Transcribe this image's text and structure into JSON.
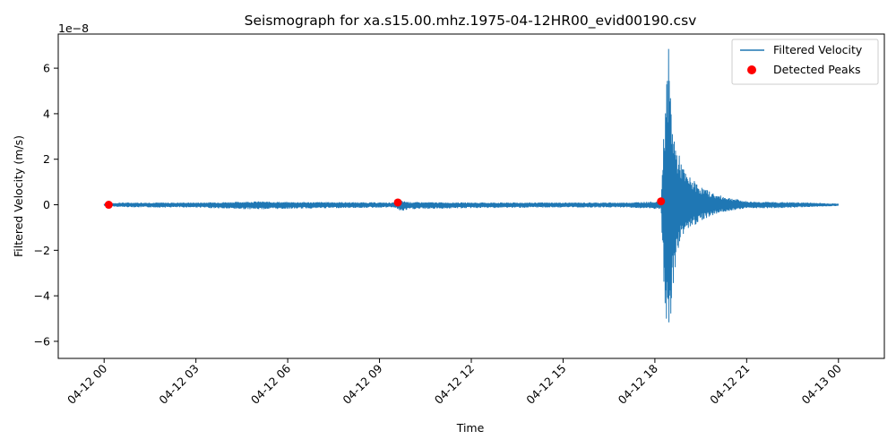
{
  "chart_data": {
    "type": "line",
    "title": "Seismograph for xa.s15.00.mhz.1975-04-12HR00_evid00190.csv",
    "xlabel": "Time",
    "ylabel": "Filtered Velocity (m/s)",
    "y_multiplier": "1e−8",
    "x_tick_labels": [
      "04-12 00",
      "04-12 03",
      "04-12 06",
      "04-12 09",
      "04-12 12",
      "04-12 15",
      "04-12 18",
      "04-12 21",
      "04-13 00"
    ],
    "y_ticks": [
      -6,
      -4,
      -2,
      0,
      2,
      4,
      6
    ],
    "y_tick_labels": [
      "−6",
      "−4",
      "−2",
      "0",
      "2",
      "4",
      "6"
    ],
    "xlim": [
      -1.5,
      25.5
    ],
    "ylim": [
      -6.75,
      7.5
    ],
    "y_scale_exponent": -8,
    "x_unit": "hours after 1975-04-12 00:00",
    "legend_position": "upper right",
    "series": [
      {
        "name": "Filtered Velocity",
        "color": "#1f77b4",
        "kind": "line",
        "envelope": [
          {
            "x": 0.0,
            "y_max": 0.05,
            "y_min": -0.05
          },
          {
            "x": 0.5,
            "y_max": 0.1,
            "y_min": -0.1
          },
          {
            "x": 1.5,
            "y_max": 0.1,
            "y_min": -0.12
          },
          {
            "x": 3.0,
            "y_max": 0.1,
            "y_min": -0.12
          },
          {
            "x": 4.0,
            "y_max": 0.12,
            "y_min": -0.18
          },
          {
            "x": 5.0,
            "y_max": 0.15,
            "y_min": -0.2
          },
          {
            "x": 6.0,
            "y_max": 0.12,
            "y_min": -0.18
          },
          {
            "x": 7.5,
            "y_max": 0.12,
            "y_min": -0.15
          },
          {
            "x": 9.5,
            "y_max": 0.1,
            "y_min": -0.12
          },
          {
            "x": 9.7,
            "y_max": 0.18,
            "y_min": -0.3
          },
          {
            "x": 10.0,
            "y_max": 0.12,
            "y_min": -0.2
          },
          {
            "x": 12.0,
            "y_max": 0.1,
            "y_min": -0.15
          },
          {
            "x": 15.0,
            "y_max": 0.1,
            "y_min": -0.12
          },
          {
            "x": 17.0,
            "y_max": 0.1,
            "y_min": -0.12
          },
          {
            "x": 18.2,
            "y_max": 0.15,
            "y_min": -0.2
          },
          {
            "x": 18.25,
            "y_max": 2.0,
            "y_min": -2.0
          },
          {
            "x": 18.35,
            "y_max": 5.0,
            "y_min": -5.8
          },
          {
            "x": 18.45,
            "y_max": 6.9,
            "y_min": -6.1
          },
          {
            "x": 18.55,
            "y_max": 4.0,
            "y_min": -4.5
          },
          {
            "x": 18.7,
            "y_max": 2.5,
            "y_min": -2.5
          },
          {
            "x": 18.85,
            "y_max": 2.0,
            "y_min": -1.4
          },
          {
            "x": 19.0,
            "y_max": 1.4,
            "y_min": -1.2
          },
          {
            "x": 19.5,
            "y_max": 0.8,
            "y_min": -0.7
          },
          {
            "x": 20.0,
            "y_max": 0.45,
            "y_min": -0.4
          },
          {
            "x": 20.5,
            "y_max": 0.3,
            "y_min": -0.25
          },
          {
            "x": 21.0,
            "y_max": 0.15,
            "y_min": -0.15
          },
          {
            "x": 22.0,
            "y_max": 0.12,
            "y_min": -0.15
          },
          {
            "x": 23.0,
            "y_max": 0.1,
            "y_min": -0.1
          },
          {
            "x": 24.0,
            "y_max": 0.05,
            "y_min": -0.05
          }
        ]
      },
      {
        "name": "Detected Peaks",
        "color": "#ff0000",
        "kind": "scatter",
        "points": [
          {
            "x": 0.15,
            "y": 0.0
          },
          {
            "x": 9.6,
            "y": 0.1
          },
          {
            "x": 18.2,
            "y": 0.15
          }
        ]
      }
    ]
  }
}
